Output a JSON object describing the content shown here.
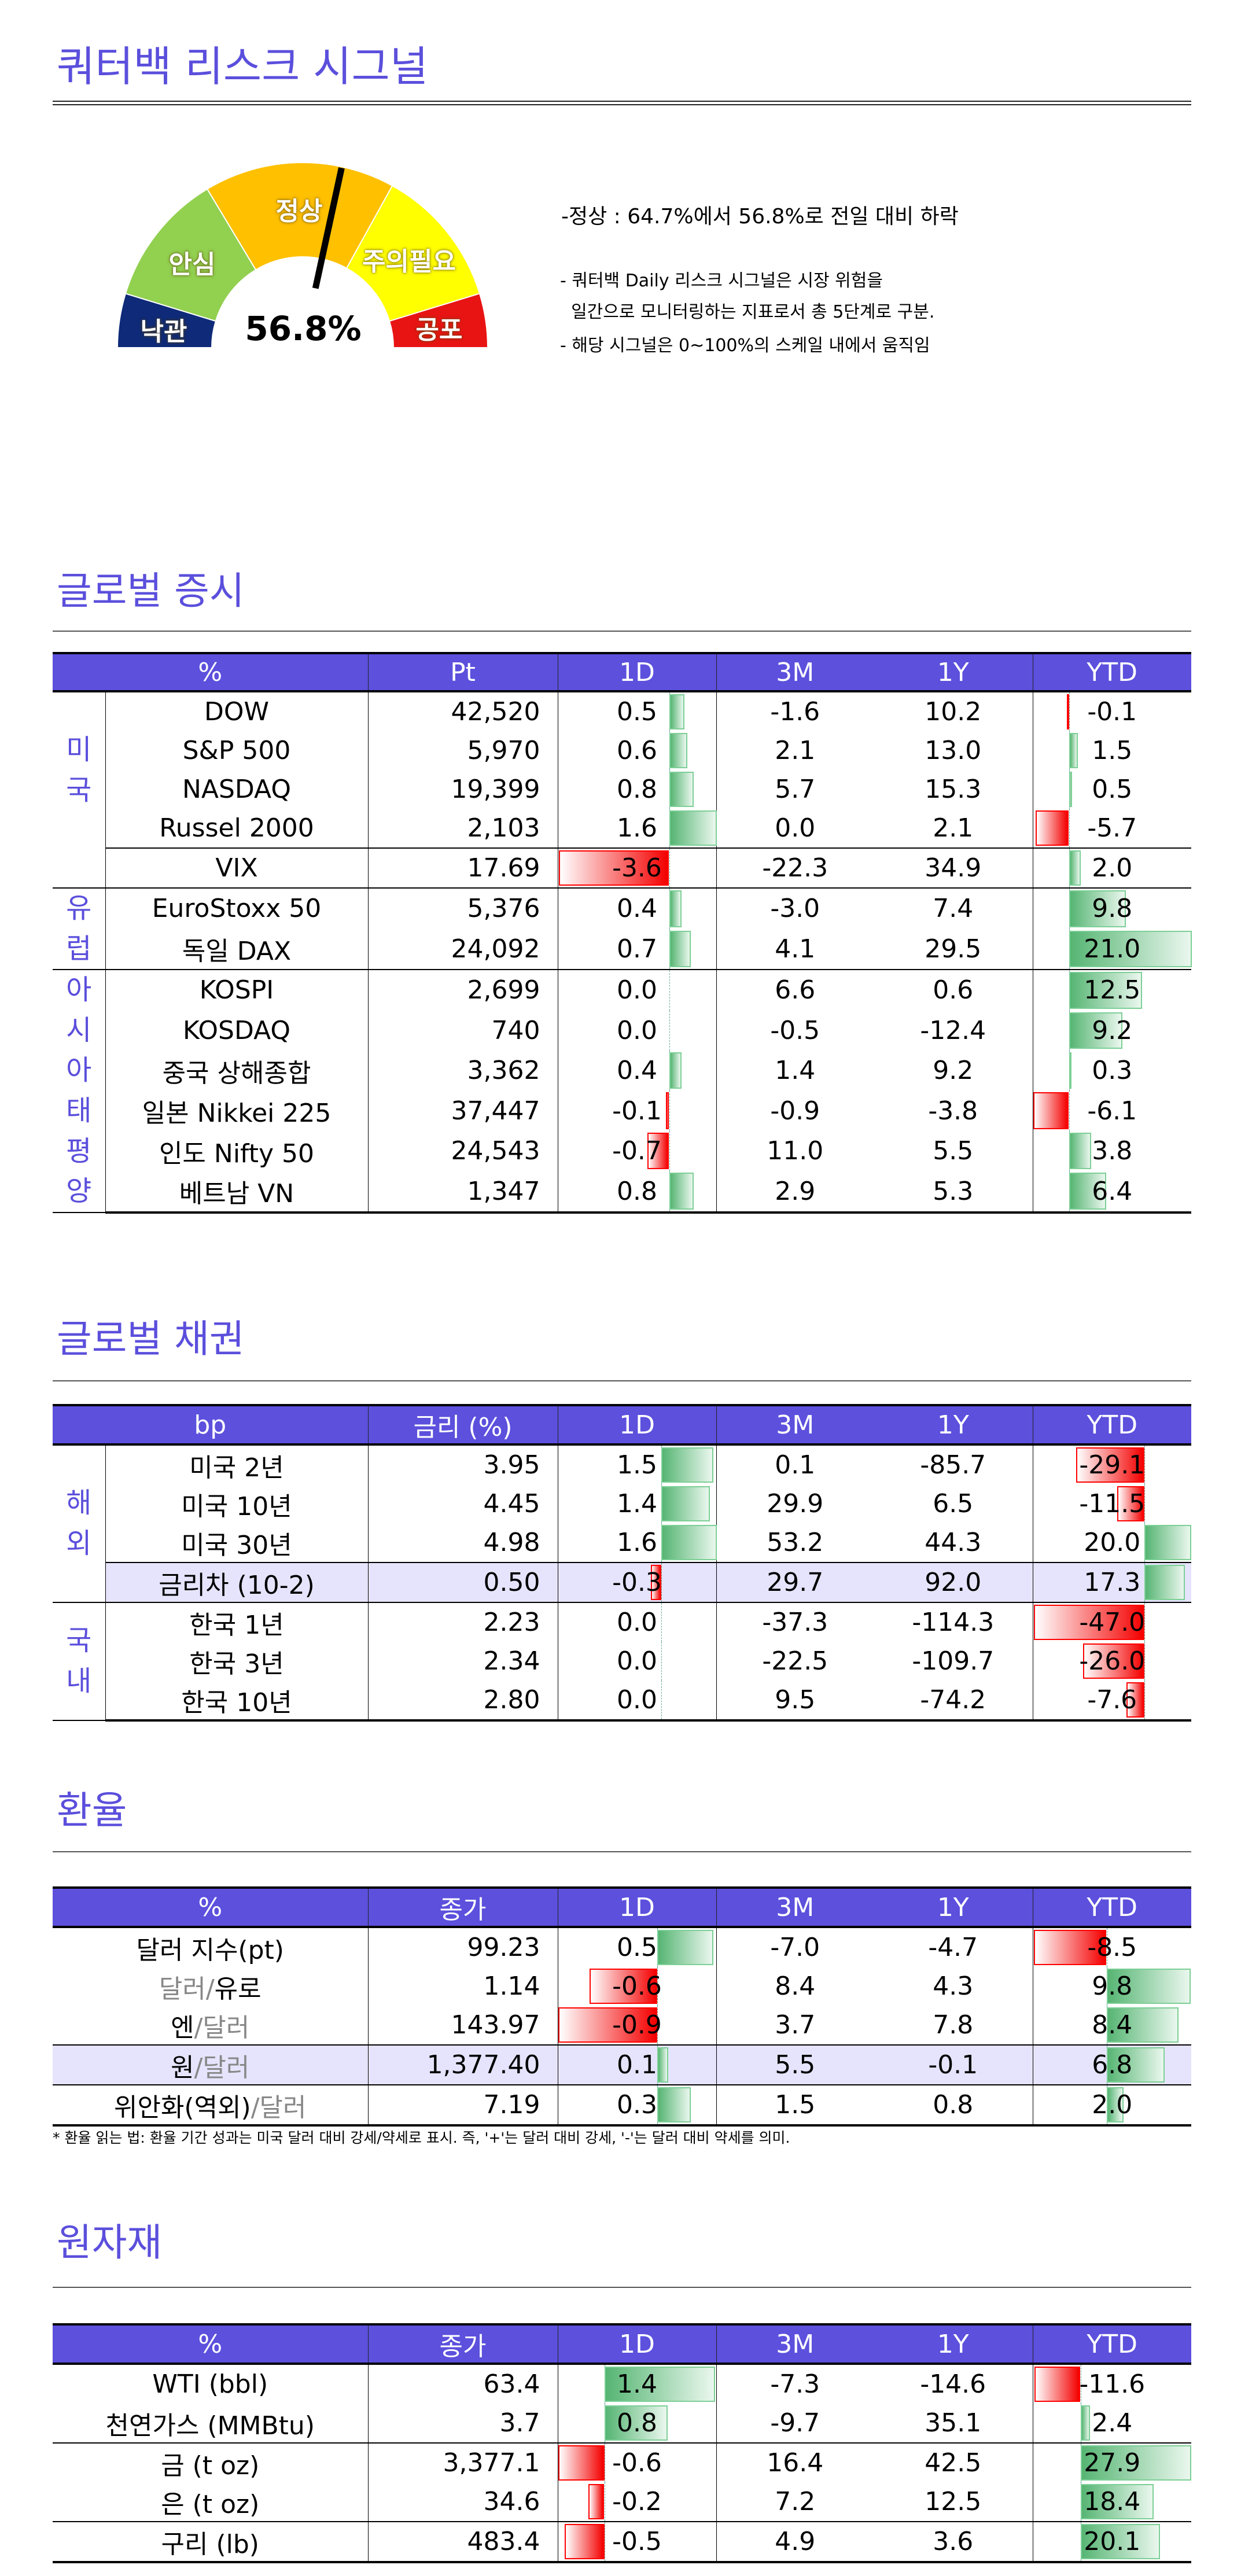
{
  "title": "쿼터백 리스크 시그널",
  "gauge": {
    "value_percent": 56.8,
    "value_label": "56.8%",
    "segments": [
      {
        "label": "낙관",
        "color": "#0e2a78"
      },
      {
        "label": "안심",
        "color": "#92d050"
      },
      {
        "label": "정상",
        "color": "#ffc000"
      },
      {
        "label": "주의필요",
        "color": "#ffff00"
      },
      {
        "label": "공포",
        "color": "#e81414"
      }
    ]
  },
  "summary": "-정상 : 64.7%에서 56.8%로 전일 대비 하락",
  "notes": [
    "- 쿼터백 Daily 리스크 시그널은 시장 위험을",
    "  일간으로 모니터링하는 지표로서 총 5단계로 구분.",
    "- 해당 시그널은 0~100%의 스케일 내에서 움직임"
  ],
  "sections": {
    "stocks": {
      "heading": "글로벌 증시",
      "headers": [
        "%",
        "Pt",
        "1D",
        "3M",
        "1Y",
        "YTD"
      ],
      "groups": [
        {
          "label": "미국",
          "start": 0,
          "span": 5
        },
        {
          "label": "유럽",
          "start": 5,
          "span": 2
        },
        {
          "label": "아시아태평양",
          "start": 7,
          "span": 6
        }
      ],
      "rows": [
        {
          "name": [
            {
              "t": "DOW"
            }
          ],
          "value": "42,520",
          "d1": "0.5",
          "m3": "-1.6",
          "y1": "10.2",
          "ytd": "-0.1"
        },
        {
          "name": [
            {
              "t": "S&P 500"
            }
          ],
          "value": "5,970",
          "d1": "0.6",
          "m3": "2.1",
          "y1": "13.0",
          "ytd": "1.5"
        },
        {
          "name": [
            {
              "t": "NASDAQ"
            }
          ],
          "value": "19,399",
          "d1": "0.8",
          "m3": "5.7",
          "y1": "15.3",
          "ytd": "0.5"
        },
        {
          "name": [
            {
              "t": "Russel 2000"
            }
          ],
          "value": "2,103",
          "d1": "1.6",
          "m3": "0.0",
          "y1": "2.1",
          "ytd": "-5.7"
        },
        {
          "name": [
            {
              "t": "VIX"
            }
          ],
          "value": "17.69",
          "d1": "-3.6",
          "m3": "-22.3",
          "y1": "34.9",
          "ytd": "2.0"
        },
        {
          "name": [
            {
              "t": "EuroStoxx 50"
            }
          ],
          "value": "5,376",
          "d1": "0.4",
          "m3": "-3.0",
          "y1": "7.4",
          "ytd": "9.8"
        },
        {
          "name": [
            {
              "t": "독일 DAX"
            }
          ],
          "value": "24,092",
          "d1": "0.7",
          "m3": "4.1",
          "y1": "29.5",
          "ytd": "21.0"
        },
        {
          "name": [
            {
              "t": "KOSPI"
            }
          ],
          "value": "2,699",
          "d1": "0.0",
          "m3": "6.6",
          "y1": "0.6",
          "ytd": "12.5"
        },
        {
          "name": [
            {
              "t": "KOSDAQ"
            }
          ],
          "value": "740",
          "d1": "0.0",
          "m3": "-0.5",
          "y1": "-12.4",
          "ytd": "9.2"
        },
        {
          "name": [
            {
              "t": "중국 상해종합"
            }
          ],
          "value": "3,362",
          "d1": "0.4",
          "m3": "1.4",
          "y1": "9.2",
          "ytd": "0.3"
        },
        {
          "name": [
            {
              "t": "일본 Nikkei 225"
            }
          ],
          "value": "37,447",
          "d1": "-0.1",
          "m3": "-0.9",
          "y1": "-3.8",
          "ytd": "-6.1"
        },
        {
          "name": [
            {
              "t": "인도 Nifty 50"
            }
          ],
          "value": "24,543",
          "d1": "-0.7",
          "m3": "11.0",
          "y1": "5.5",
          "ytd": "3.8"
        },
        {
          "name": [
            {
              "t": "베트남 VN"
            }
          ],
          "value": "1,347",
          "d1": "0.8",
          "m3": "2.9",
          "y1": "5.3",
          "ytd": "6.4"
        }
      ]
    },
    "bonds": {
      "heading": "글로벌 채권",
      "headers": [
        "bp",
        "금리 (%)",
        "1D",
        "3M",
        "1Y",
        "YTD"
      ],
      "groups": [
        {
          "label": "해외",
          "start": 0,
          "span": 4
        },
        {
          "label": "국내",
          "start": 4,
          "span": 3
        }
      ],
      "rows": [
        {
          "name": [
            {
              "t": "미국 2년"
            }
          ],
          "value": "3.95",
          "d1": "1.5",
          "m3": "0.1",
          "y1": "-85.7",
          "ytd": "-29.1"
        },
        {
          "name": [
            {
              "t": "미국 10년"
            }
          ],
          "value": "4.45",
          "d1": "1.4",
          "m3": "29.9",
          "y1": "6.5",
          "ytd": "-11.5"
        },
        {
          "name": [
            {
              "t": "미국 30년"
            }
          ],
          "value": "4.98",
          "d1": "1.6",
          "m3": "53.2",
          "y1": "44.3",
          "ytd": "20.0"
        },
        {
          "name": [
            {
              "t": "금리차 (10-2)"
            }
          ],
          "value": "0.50",
          "d1": "-0.3",
          "m3": "29.7",
          "y1": "92.0",
          "ytd": "17.3"
        },
        {
          "name": [
            {
              "t": "한국 1년"
            }
          ],
          "value": "2.23",
          "d1": "0.0",
          "m3": "-37.3",
          "y1": "-114.3",
          "ytd": "-47.0"
        },
        {
          "name": [
            {
              "t": "한국 3년"
            }
          ],
          "value": "2.34",
          "d1": "0.0",
          "m3": "-22.5",
          "y1": "-109.7",
          "ytd": "-26.0"
        },
        {
          "name": [
            {
              "t": "한국 10년"
            }
          ],
          "value": "2.80",
          "d1": "0.0",
          "m3": "9.5",
          "y1": "-74.2",
          "ytd": "-7.6"
        }
      ]
    },
    "fx": {
      "heading": "환율",
      "headers": [
        "%",
        "종가",
        "1D",
        "3M",
        "1Y",
        "YTD"
      ],
      "groups": [],
      "rows": [
        {
          "name": [
            {
              "t": "달러 지수(pt)"
            }
          ],
          "value": "99.23",
          "d1": "0.5",
          "m3": "-7.0",
          "y1": "-4.7",
          "ytd": "-8.5"
        },
        {
          "name": [
            {
              "t": "달러/",
              "muted": true
            },
            {
              "t": "유로"
            }
          ],
          "value": "1.14",
          "d1": "-0.6",
          "m3": "8.4",
          "y1": "4.3",
          "ytd": "9.8"
        },
        {
          "name": [
            {
              "t": "엔"
            },
            {
              "t": "/달러",
              "muted": true
            }
          ],
          "value": "143.97",
          "d1": "-0.9",
          "m3": "3.7",
          "y1": "7.8",
          "ytd": "8.4"
        },
        {
          "name": [
            {
              "t": "원"
            },
            {
              "t": "/달러",
              "muted": true
            }
          ],
          "value": "1,377.40",
          "d1": "0.1",
          "m3": "5.5",
          "y1": "-0.1",
          "ytd": "6.8"
        },
        {
          "name": [
            {
              "t": "위안화(역외)"
            },
            {
              "t": "/달러",
              "muted": true
            }
          ],
          "value": "7.19",
          "d1": "0.3",
          "m3": "1.5",
          "y1": "0.8",
          "ytd": "2.0"
        }
      ],
      "footnote": "* 환율 읽는 법: 환율 기간 성과는 미국 달러 대비 강세/약세로 표시. 즉, '+'는 달러 대비 강세, '-'는 달러 대비 약세를 의미."
    },
    "commodities": {
      "heading": "원자재",
      "headers": [
        "%",
        "종가",
        "1D",
        "3M",
        "1Y",
        "YTD"
      ],
      "groups": [],
      "rows": [
        {
          "name": [
            {
              "t": "WTI (bbl)"
            }
          ],
          "value": "63.4",
          "d1": "1.4",
          "m3": "-7.3",
          "y1": "-14.6",
          "ytd": "-11.6"
        },
        {
          "name": [
            {
              "t": "천연가스 (MMBtu)"
            }
          ],
          "value": "3.7",
          "d1": "0.8",
          "m3": "-9.7",
          "y1": "35.1",
          "ytd": "2.4"
        },
        {
          "name": [
            {
              "t": "금 (t oz)"
            }
          ],
          "value": "3,377.1",
          "d1": "-0.6",
          "m3": "16.4",
          "y1": "42.5",
          "ytd": "27.9"
        },
        {
          "name": [
            {
              "t": "은 (t oz)"
            }
          ],
          "value": "34.6",
          "d1": "-0.2",
          "m3": "7.2",
          "y1": "12.5",
          "ytd": "18.4"
        },
        {
          "name": [
            {
              "t": "구리 (lb)"
            }
          ],
          "value": "483.4",
          "d1": "-0.5",
          "m3": "4.9",
          "y1": "3.6",
          "ytd": "20.1"
        }
      ]
    }
  }
}
